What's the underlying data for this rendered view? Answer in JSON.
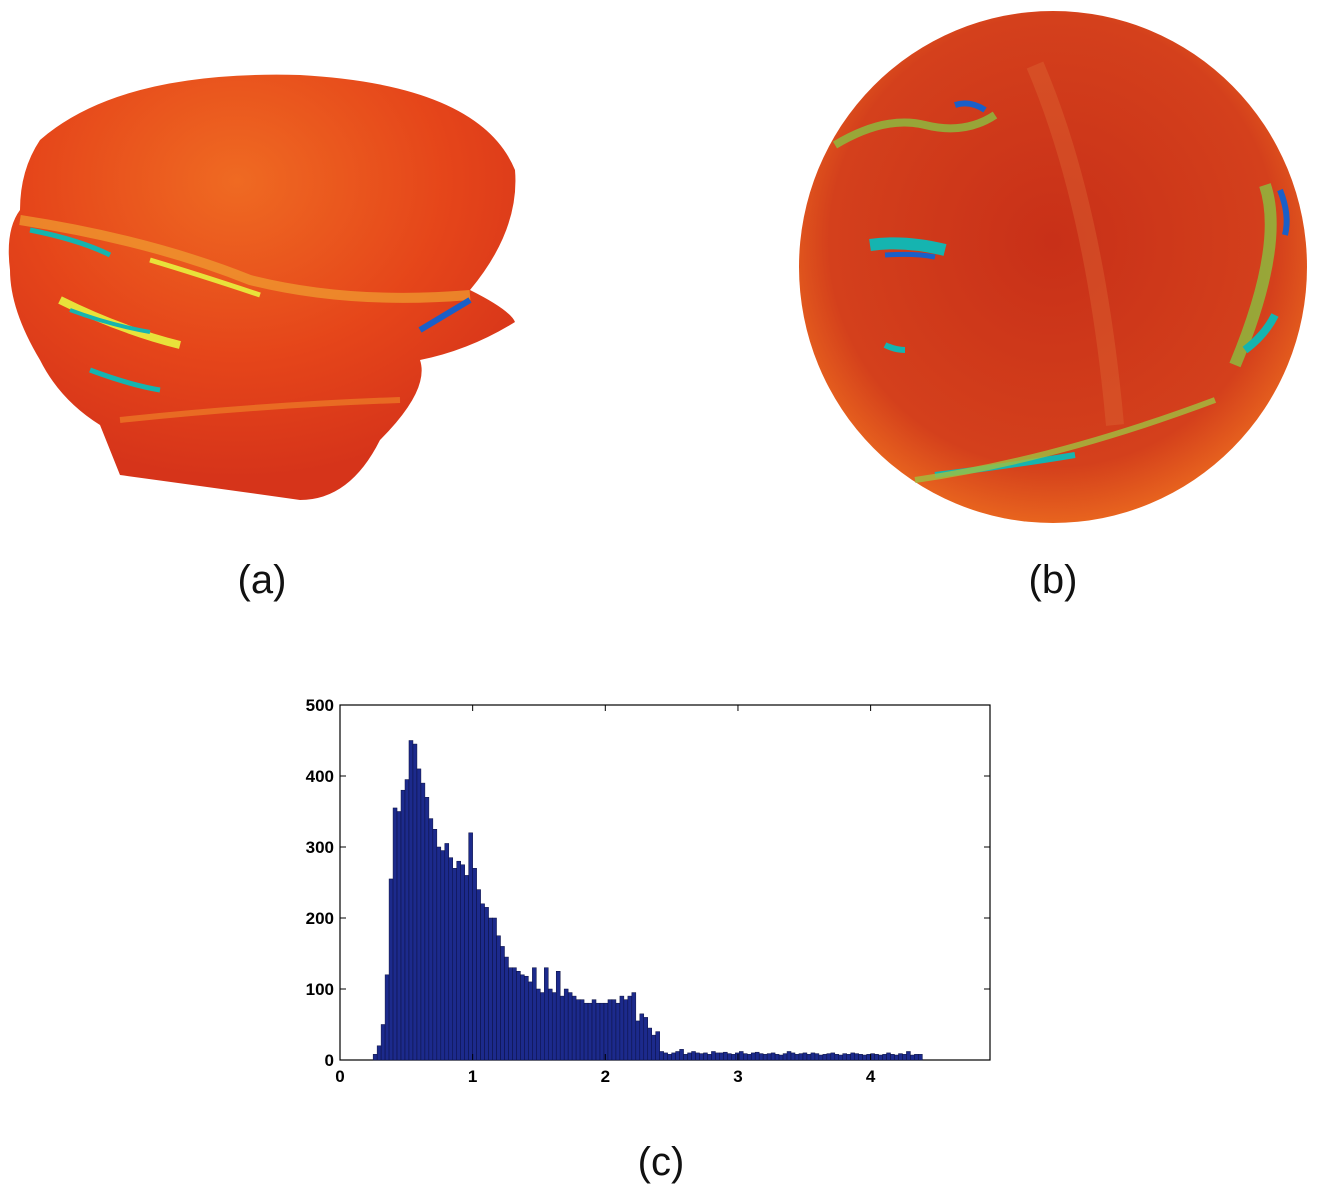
{
  "captions": {
    "a": "(a)",
    "b": "(b)",
    "c": "(c)"
  },
  "colors": {
    "bar_fill": "#1c2a8c",
    "surface_red": "#e3401a",
    "surface_orange": "#ee6a1e",
    "highlight_yellow": "#e8e23a",
    "highlight_cyan": "#15b4b0",
    "highlight_blue": "#1a5fc8"
  },
  "chart_data": {
    "type": "bar",
    "title": "",
    "xlabel": "",
    "ylabel": "",
    "xlim": [
      0,
      4.9
    ],
    "ylim": [
      0,
      500
    ],
    "xticks": [
      0,
      1,
      2,
      3,
      4
    ],
    "yticks": [
      0,
      100,
      200,
      300,
      400,
      500
    ],
    "bin_start": 0.25,
    "bin_width": 0.03,
    "values": [
      8,
      20,
      50,
      120,
      255,
      355,
      350,
      380,
      395,
      450,
      445,
      410,
      390,
      370,
      340,
      325,
      300,
      295,
      305,
      285,
      270,
      280,
      275,
      260,
      320,
      270,
      240,
      220,
      215,
      200,
      200,
      175,
      160,
      145,
      130,
      130,
      125,
      120,
      118,
      110,
      130,
      100,
      95,
      130,
      100,
      95,
      125,
      90,
      100,
      95,
      90,
      85,
      85,
      80,
      80,
      85,
      80,
      80,
      80,
      85,
      85,
      80,
      90,
      85,
      90,
      95,
      55,
      65,
      60,
      45,
      35,
      40,
      12,
      10,
      8,
      10,
      12,
      15,
      8,
      10,
      12,
      10,
      9,
      10,
      8,
      12,
      10,
      10,
      11,
      9,
      8,
      10,
      12,
      9,
      8,
      10,
      11,
      9,
      8,
      9,
      10,
      8,
      7,
      9,
      12,
      10,
      8,
      9,
      10,
      8,
      10,
      9,
      7,
      8,
      9,
      10,
      8,
      7,
      9,
      8,
      10,
      9,
      8,
      7,
      8,
      9,
      8,
      7,
      8,
      10,
      8,
      7,
      9,
      8,
      12,
      7,
      8,
      8
    ]
  }
}
